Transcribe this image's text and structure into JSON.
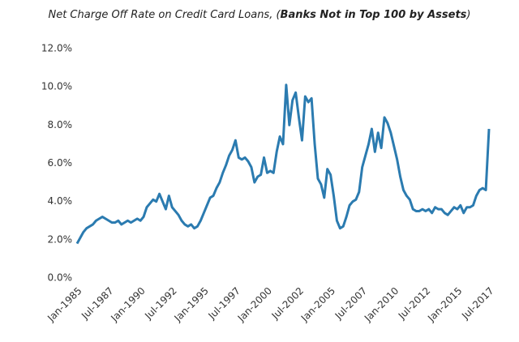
{
  "chart_data": {
    "type": "line",
    "title_parts": [
      "Net Charge Off Rate on Credit Card Loans, (",
      "Banks Not in Top 100 by Assets",
      ")"
    ],
    "categories": [
      "Jan-1985",
      null,
      null,
      null,
      null,
      null,
      null,
      null,
      null,
      null,
      "Jul-1987",
      null,
      null,
      null,
      null,
      null,
      null,
      null,
      null,
      null,
      "Jan-1990",
      null,
      null,
      null,
      null,
      null,
      null,
      null,
      null,
      null,
      "Jul-1992",
      null,
      null,
      null,
      null,
      null,
      null,
      null,
      null,
      null,
      "Jan-1995",
      null,
      null,
      null,
      null,
      null,
      null,
      null,
      null,
      null,
      "Jul-1997",
      null,
      null,
      null,
      null,
      null,
      null,
      null,
      null,
      null,
      "Jan-2000",
      null,
      null,
      null,
      null,
      null,
      null,
      null,
      null,
      null,
      "Jul-2002",
      null,
      null,
      null,
      null,
      null,
      null,
      null,
      null,
      null,
      "Jan-2005",
      null,
      null,
      null,
      null,
      null,
      null,
      null,
      null,
      null,
      "Jul-2007",
      null,
      null,
      null,
      null,
      null,
      null,
      null,
      null,
      null,
      "Jan-2010",
      null,
      null,
      null,
      null,
      null,
      null,
      null,
      null,
      null,
      "Jul-2012",
      null,
      null,
      null,
      null,
      null,
      null,
      null,
      null,
      null,
      "Jan-2015",
      null,
      null,
      null,
      null,
      null,
      null,
      null,
      null,
      null,
      "Jul-2017"
    ],
    "values": [
      1.8,
      2.1,
      2.4,
      2.6,
      2.7,
      2.8,
      3.0,
      3.1,
      3.2,
      3.1,
      3.0,
      2.9,
      2.9,
      3.0,
      2.8,
      2.9,
      3.0,
      2.9,
      3.0,
      3.1,
      3.0,
      3.2,
      3.7,
      3.9,
      4.1,
      4.0,
      4.4,
      4.0,
      3.6,
      4.3,
      3.7,
      3.5,
      3.3,
      3.0,
      2.8,
      2.7,
      2.8,
      2.6,
      2.7,
      3.0,
      3.4,
      3.8,
      4.2,
      4.3,
      4.7,
      5.0,
      5.5,
      5.9,
      6.4,
      6.7,
      7.2,
      6.3,
      6.2,
      6.3,
      6.1,
      5.8,
      5.0,
      5.3,
      5.4,
      6.3,
      5.5,
      5.6,
      5.5,
      6.6,
      7.4,
      7.0,
      10.1,
      8.0,
      9.3,
      9.7,
      8.4,
      7.2,
      9.5,
      9.2,
      9.4,
      7.0,
      5.2,
      4.9,
      4.2,
      5.7,
      5.4,
      4.3,
      3.0,
      2.6,
      2.7,
      3.2,
      3.8,
      4.0,
      4.1,
      4.5,
      5.8,
      6.4,
      7.0,
      7.8,
      6.6,
      7.6,
      6.8,
      8.4,
      8.1,
      7.6,
      6.9,
      6.2,
      5.3,
      4.6,
      4.3,
      4.1,
      3.6,
      3.5,
      3.5,
      3.6,
      3.5,
      3.6,
      3.4,
      3.7,
      3.6,
      3.6,
      3.4,
      3.3,
      3.5,
      3.7,
      3.6,
      3.8,
      3.4,
      3.7,
      3.7,
      3.8,
      4.3,
      4.6,
      4.7,
      4.6,
      7.8
    ],
    "color": "#2b7bb0",
    "ylim": [
      0,
      12
    ],
    "yticks": [
      {
        "value": 0,
        "label": "0.0%"
      },
      {
        "value": 2,
        "label": "2.0%"
      },
      {
        "value": 4,
        "label": "4.0%"
      },
      {
        "value": 6,
        "label": "6.0%"
      },
      {
        "value": 8,
        "label": "8.0%"
      },
      {
        "value": 10,
        "label": "10.0%"
      },
      {
        "value": 12,
        "label": "12.0%"
      }
    ],
    "grid": false
  }
}
